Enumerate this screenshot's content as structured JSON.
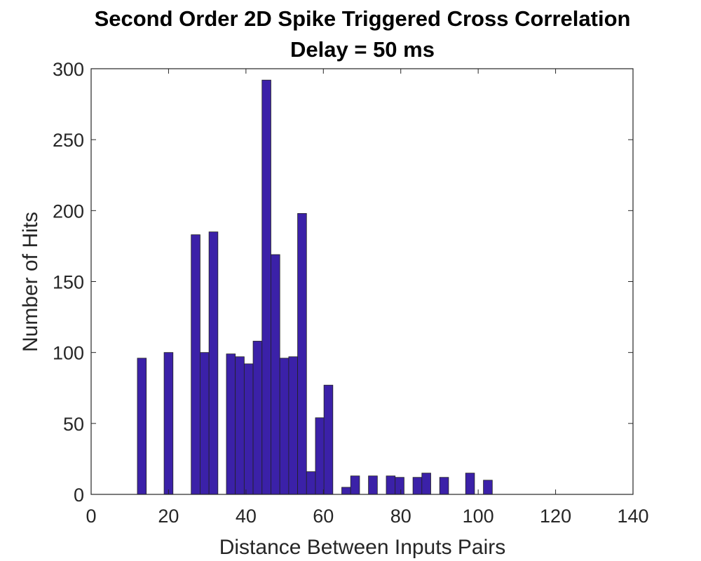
{
  "chart_data": {
    "type": "bar",
    "title": "Second Order 2D Spike Triggered Cross Correlation",
    "subtitle": "Delay = 50 ms",
    "xlabel": "Distance Between Inputs Pairs",
    "ylabel": "Number of Hits",
    "xlim": [
      0,
      140
    ],
    "ylim": [
      0,
      300
    ],
    "xticks": [
      "0",
      "20",
      "40",
      "60",
      "80",
      "100",
      "120",
      "140"
    ],
    "yticks": [
      "0",
      "50",
      "100",
      "150",
      "200",
      "250",
      "300"
    ],
    "grid": false,
    "bar_color": "#3b21a8",
    "bar_edge_color": "#222222",
    "bins": [
      {
        "x": 13.1,
        "y": 96
      },
      {
        "x": 20.0,
        "y": 100
      },
      {
        "x": 27.0,
        "y": 183
      },
      {
        "x": 29.3,
        "y": 100
      },
      {
        "x": 31.6,
        "y": 185
      },
      {
        "x": 36.1,
        "y": 99
      },
      {
        "x": 38.4,
        "y": 97
      },
      {
        "x": 40.7,
        "y": 92
      },
      {
        "x": 43.0,
        "y": 108
      },
      {
        "x": 45.3,
        "y": 292
      },
      {
        "x": 47.6,
        "y": 169
      },
      {
        "x": 49.9,
        "y": 96
      },
      {
        "x": 52.2,
        "y": 97
      },
      {
        "x": 54.5,
        "y": 198
      },
      {
        "x": 56.8,
        "y": 16
      },
      {
        "x": 59.1,
        "y": 54
      },
      {
        "x": 61.3,
        "y": 77
      },
      {
        "x": 65.9,
        "y": 5
      },
      {
        "x": 68.2,
        "y": 13
      },
      {
        "x": 72.8,
        "y": 13
      },
      {
        "x": 77.4,
        "y": 13
      },
      {
        "x": 79.7,
        "y": 12
      },
      {
        "x": 84.3,
        "y": 12
      },
      {
        "x": 86.6,
        "y": 15
      },
      {
        "x": 91.2,
        "y": 12
      },
      {
        "x": 97.9,
        "y": 15
      },
      {
        "x": 102.5,
        "y": 10
      }
    ],
    "bin_width": 2.3
  }
}
